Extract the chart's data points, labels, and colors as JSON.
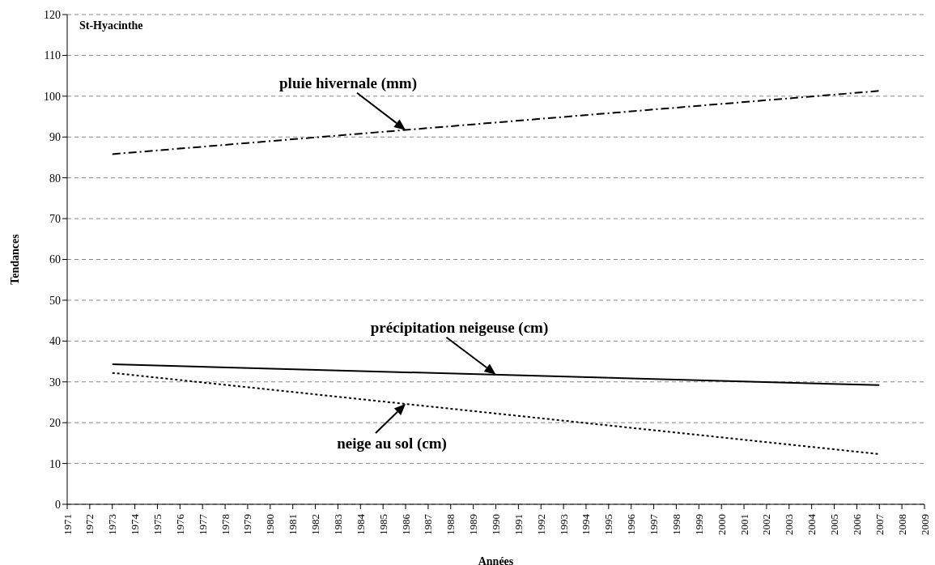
{
  "chart_data": {
    "type": "line",
    "title": "St-Hyacinthe",
    "xlabel": "Années",
    "ylabel": "Tendances",
    "categories": [
      "1971",
      "1972",
      "1973",
      "1974",
      "1975",
      "1976",
      "1977",
      "1978",
      "1979",
      "1980",
      "1981",
      "1982",
      "1983",
      "1984",
      "1985",
      "1986",
      "1987",
      "1988",
      "1989",
      "1990",
      "1991",
      "1992",
      "1993",
      "1994",
      "1995",
      "1996",
      "1997",
      "1998",
      "1999",
      "2000",
      "2001",
      "2002",
      "2003",
      "2004",
      "2005",
      "2006",
      "2007",
      "2008",
      "2009"
    ],
    "series": [
      {
        "color": "#000000",
        "line_style": "dashdot",
        "values": [
          null,
          null,
          85.8,
          null,
          null,
          null,
          null,
          null,
          null,
          null,
          null,
          null,
          null,
          null,
          null,
          null,
          null,
          null,
          null,
          null,
          null,
          null,
          null,
          null,
          null,
          null,
          null,
          null,
          null,
          null,
          null,
          null,
          null,
          null,
          null,
          null,
          101.3,
          null,
          null
        ]
      },
      {
        "color": "#000000",
        "line_style": "solid",
        "values": [
          null,
          null,
          34.3,
          null,
          null,
          null,
          null,
          null,
          null,
          null,
          null,
          null,
          null,
          null,
          null,
          null,
          null,
          null,
          null,
          null,
          null,
          null,
          null,
          null,
          null,
          null,
          null,
          null,
          null,
          null,
          null,
          null,
          null,
          null,
          null,
          null,
          29.2,
          null,
          null
        ]
      },
      {
        "color": "#000000",
        "line_style": "dotted",
        "values": [
          null,
          null,
          32.2,
          null,
          null,
          null,
          null,
          null,
          null,
          null,
          null,
          null,
          null,
          null,
          null,
          null,
          null,
          null,
          null,
          null,
          null,
          null,
          null,
          null,
          null,
          null,
          null,
          null,
          null,
          null,
          null,
          null,
          null,
          null,
          null,
          null,
          12.3,
          null,
          null
        ]
      }
    ],
    "annotations": [
      {
        "text": "pluie hivernale (mm)",
        "x": "1986",
        "y": 91.7
      },
      {
        "text": "précipitation neigeuse (cm)",
        "x": "1990",
        "y": 31.8
      },
      {
        "text": "neige au sol (cm)",
        "x": "1986",
        "y": 24.6
      }
    ],
    "ylim": [
      0,
      120
    ],
    "yticks": [
      0,
      10,
      20,
      30,
      40,
      50,
      60,
      70,
      80,
      90,
      100,
      110,
      120
    ],
    "grid": "y",
    "legend": false,
    "marker": "none"
  }
}
